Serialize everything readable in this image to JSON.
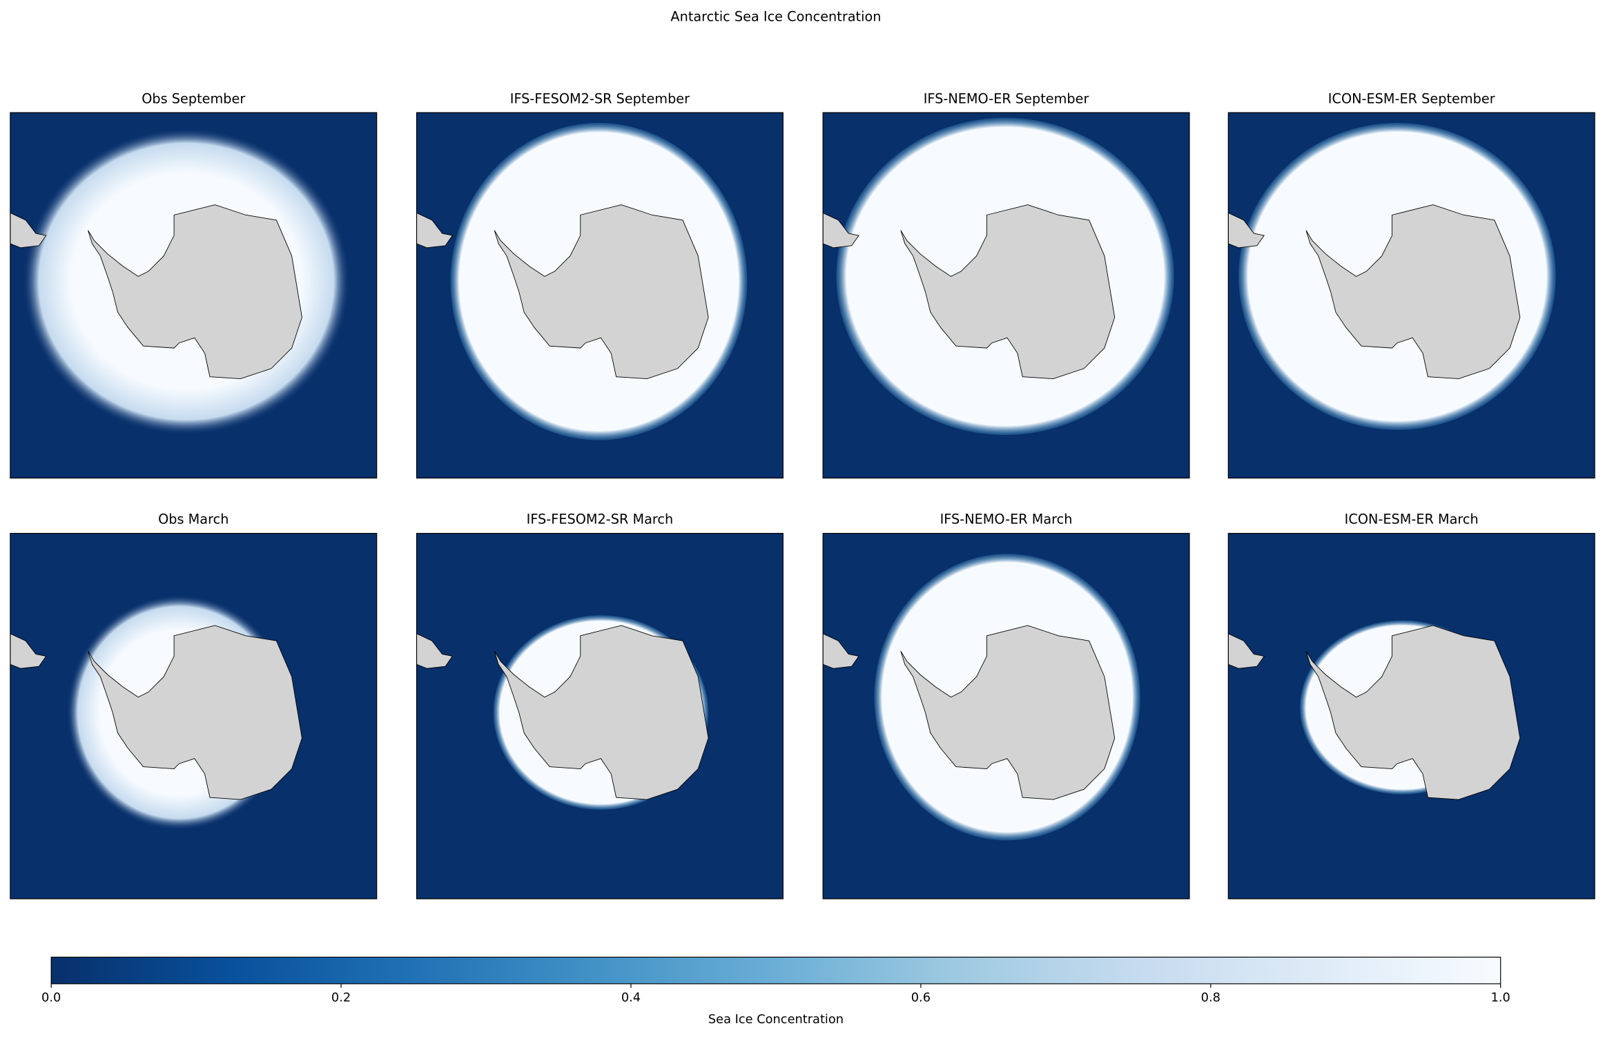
{
  "chart_data": {
    "type": "map",
    "title": "Antarctic Sea Ice Concentration",
    "panels": [
      {
        "title": "Obs September"
      },
      {
        "title": "IFS-FESOM2-SR September"
      },
      {
        "title": "IFS-NEMO-ER September"
      },
      {
        "title": "ICON-ESM-ER September"
      },
      {
        "title": "Obs March"
      },
      {
        "title": "IFS-FESOM2-SR March"
      },
      {
        "title": "IFS-NEMO-ER March"
      },
      {
        "title": "ICON-ESM-ER March"
      }
    ],
    "colorbar": {
      "label": "Sea Ice Concentration",
      "xlim": [
        0,
        1
      ],
      "xticks": [
        {
          "value": 0,
          "label": "0.0"
        },
        0.2,
        0.4,
        0.6,
        0.8,
        {
          "value": 1,
          "label": "1.0"
        }
      ],
      "colors": [
        "#08306b",
        "#08519c",
        "#2171b5",
        "#4292c6",
        "#6baed6",
        "#9ecae1",
        "#c6dbef",
        "#deebf7",
        "#f7fbff"
      ]
    }
  }
}
